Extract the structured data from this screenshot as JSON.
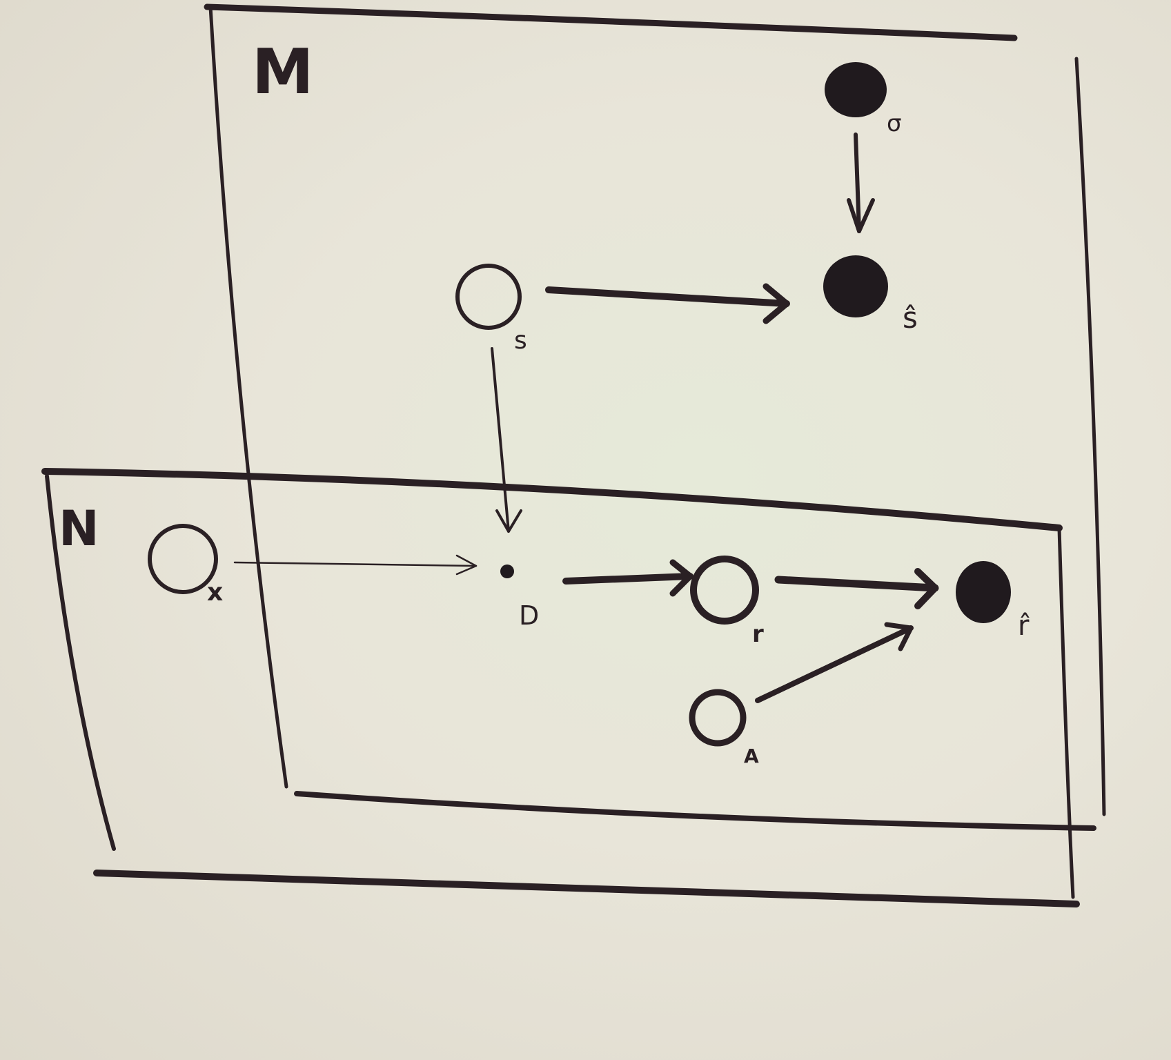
{
  "plates": {
    "outer": {
      "label": "M"
    },
    "inner": {
      "label": "N"
    }
  },
  "nodes": {
    "sigma": {
      "label": "σ",
      "kind": "observed"
    },
    "s_hat": {
      "label": "ŝ",
      "kind": "observed"
    },
    "s": {
      "label": "s",
      "kind": "latent"
    },
    "x": {
      "label": "x",
      "kind": "latent"
    },
    "D": {
      "label": "D",
      "kind": "deterministic"
    },
    "r": {
      "label": "r",
      "kind": "latent"
    },
    "A": {
      "label": "A",
      "kind": "latent"
    },
    "r_hat": {
      "label": "r̂",
      "kind": "observed"
    }
  },
  "edges": [
    {
      "from": "sigma",
      "to": "s_hat"
    },
    {
      "from": "s",
      "to": "s_hat"
    },
    {
      "from": "s",
      "to": "D"
    },
    {
      "from": "x",
      "to": "D"
    },
    {
      "from": "D",
      "to": "r"
    },
    {
      "from": "r",
      "to": "r_hat"
    },
    {
      "from": "A",
      "to": "r_hat"
    }
  ],
  "colors": {
    "ink": "#2a2024",
    "paper": "#e8e6da"
  }
}
